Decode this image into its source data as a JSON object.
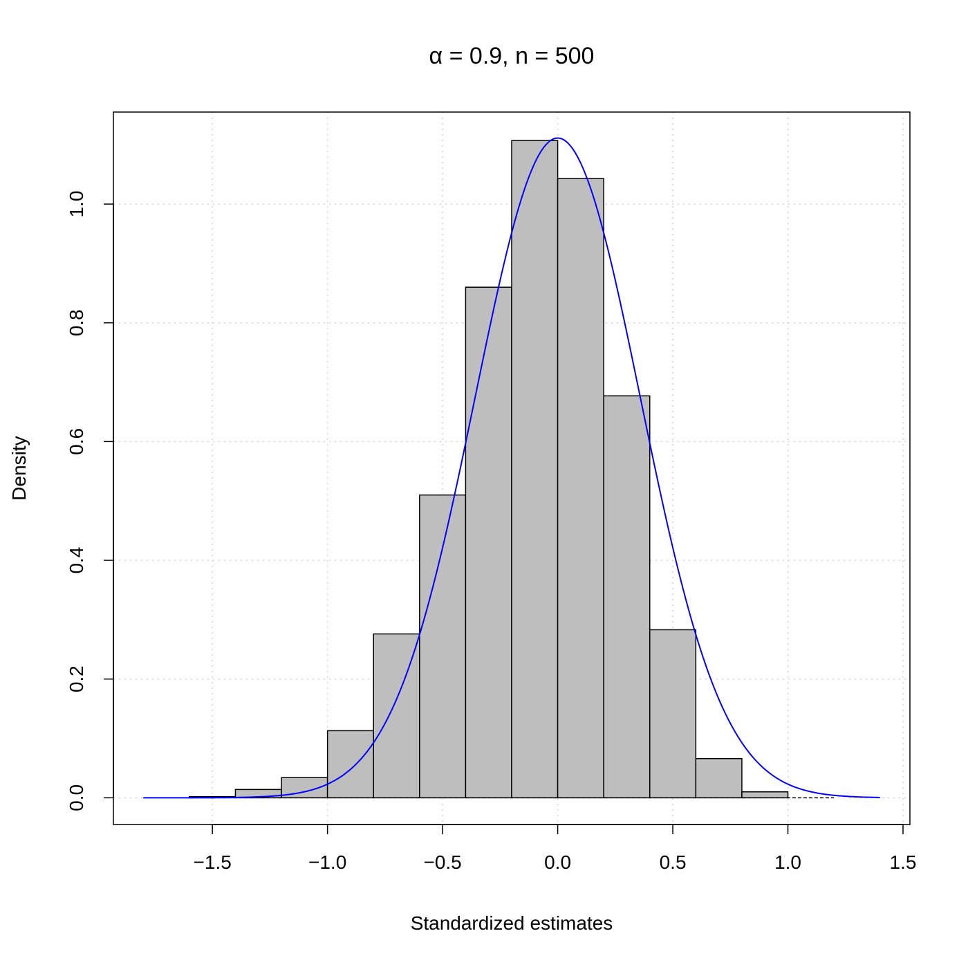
{
  "chart_data": {
    "type": "bar",
    "title": "α = 0.9, n = 500",
    "xlabel": "Standardized estimates",
    "ylabel": "Density",
    "xlim": [
      -1.93,
      1.53
    ],
    "ylim": [
      -0.045,
      1.155
    ],
    "x_ticks": [
      -1.5,
      -1.0,
      -0.5,
      0.0,
      0.5,
      1.0,
      1.5
    ],
    "x_tick_labels": [
      "−1.5",
      "−1.0",
      "−0.5",
      "0.0",
      "0.5",
      "1.0",
      "1.5"
    ],
    "y_ticks": [
      0.0,
      0.2,
      0.4,
      0.6,
      0.8,
      1.0
    ],
    "y_tick_labels": [
      "0.0",
      "0.2",
      "0.4",
      "0.6",
      "0.8",
      "1.0"
    ],
    "grid": true,
    "bins": [
      {
        "x0": -1.6,
        "x1": -1.4,
        "density": 0.002
      },
      {
        "x0": -1.4,
        "x1": -1.2,
        "density": 0.014
      },
      {
        "x0": -1.2,
        "x1": -1.0,
        "density": 0.034
      },
      {
        "x0": -1.0,
        "x1": -0.8,
        "density": 0.113
      },
      {
        "x0": -0.8,
        "x1": -0.6,
        "density": 0.276
      },
      {
        "x0": -0.6,
        "x1": -0.4,
        "density": 0.51
      },
      {
        "x0": -0.4,
        "x1": -0.2,
        "density": 0.86
      },
      {
        "x0": -0.2,
        "x1": 0.0,
        "density": 1.107
      },
      {
        "x0": 0.0,
        "x1": 0.2,
        "density": 1.043
      },
      {
        "x0": 0.2,
        "x1": 0.4,
        "density": 0.677
      },
      {
        "x0": 0.4,
        "x1": 0.6,
        "density": 0.283
      },
      {
        "x0": 0.6,
        "x1": 0.8,
        "density": 0.066
      },
      {
        "x0": 0.8,
        "x1": 1.0,
        "density": 0.01
      },
      {
        "x0": 1.0,
        "x1": 1.2,
        "density": 0.0
      }
    ],
    "density_curve": {
      "distribution": "normal",
      "mean": 0.0,
      "sd": 0.359,
      "x_range": [
        -1.8,
        1.4
      ],
      "color": "#0000ff"
    },
    "bar_fill": "#bebebe",
    "bar_stroke": "#000000",
    "grid_color": "#d3d3d3"
  }
}
